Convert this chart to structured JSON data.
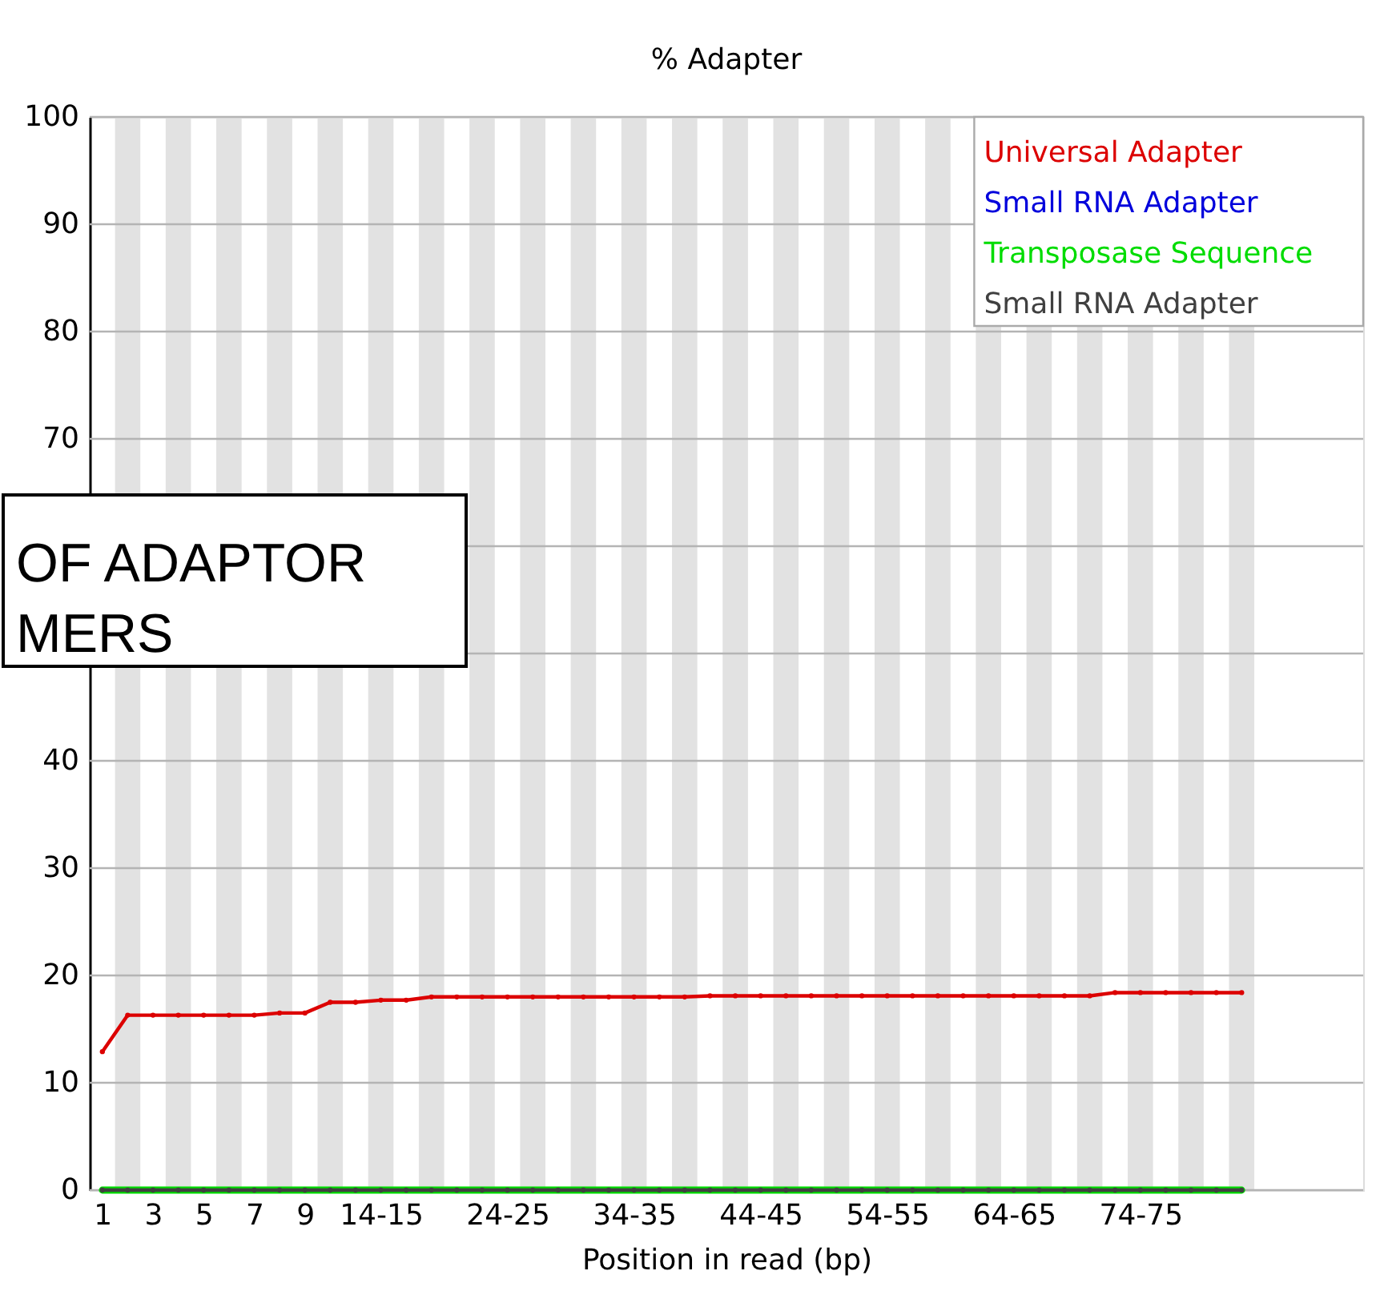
{
  "chart_data": {
    "type": "line",
    "title": "% Adapter",
    "xlabel": "Position in read (bp)",
    "x": [
      1,
      2,
      3,
      4,
      5,
      6,
      7,
      8,
      9,
      10,
      11,
      12,
      13,
      14,
      15,
      16,
      17,
      18,
      19,
      20,
      21,
      22,
      23,
      24,
      25,
      26,
      27,
      28,
      29,
      30,
      31,
      32,
      33,
      34,
      35,
      36,
      37,
      38,
      39,
      40,
      41,
      42,
      43,
      44,
      45,
      46
    ],
    "xlim": [
      0.5,
      50.8
    ],
    "xticks": [
      1,
      3,
      5,
      7,
      9,
      {
        "value": 12,
        "label": "14-15"
      },
      {
        "value": 17,
        "label": "24-25"
      },
      {
        "value": 22,
        "label": "34-35"
      },
      {
        "value": 27,
        "label": "44-45"
      },
      {
        "value": 32,
        "label": "54-55"
      },
      {
        "value": 37,
        "label": "64-65"
      },
      {
        "value": 42,
        "label": "74-75"
      }
    ],
    "ylim": [
      0,
      100
    ],
    "yticks": [
      0,
      10,
      20,
      30,
      40,
      {
        "value": 50,
        "label": null
      },
      {
        "value": 60,
        "label": null
      },
      70,
      80,
      90,
      100
    ],
    "series": [
      {
        "name": "Universal Adapter",
        "color": "#dc0000",
        "values": [
          12.9,
          16.3,
          16.3,
          16.3,
          16.3,
          16.3,
          16.3,
          16.5,
          16.5,
          17.5,
          17.5,
          17.7,
          17.7,
          18.0,
          18.0,
          18.0,
          18.0,
          18.0,
          18.0,
          18.0,
          18.0,
          18.0,
          18.0,
          18.0,
          18.1,
          18.1,
          18.1,
          18.1,
          18.1,
          18.1,
          18.1,
          18.1,
          18.1,
          18.1,
          18.1,
          18.1,
          18.1,
          18.1,
          18.1,
          18.1,
          18.4,
          18.4,
          18.4,
          18.4,
          18.4,
          18.4
        ]
      },
      {
        "name": "Small RNA Adapter",
        "color": "#0000dc",
        "values": [
          null,
          null,
          null,
          null,
          null,
          null,
          null,
          null,
          null,
          null,
          null,
          null,
          null,
          null,
          null,
          null,
          null,
          null,
          null,
          null,
          null,
          null,
          null,
          null,
          null,
          null,
          null,
          null,
          null,
          null,
          null,
          null,
          null,
          null,
          null,
          null,
          null,
          null,
          null,
          null,
          null,
          null,
          null,
          null,
          null,
          null
        ]
      },
      {
        "name": "Transposase Sequence",
        "color": "#00dc00",
        "values": [
          0,
          0,
          0,
          0,
          0,
          0,
          0,
          0,
          0,
          0,
          0,
          0,
          0,
          0,
          0,
          0,
          0,
          0,
          0,
          0,
          0,
          0,
          0,
          0,
          0,
          0,
          0,
          0,
          0,
          0,
          0,
          0,
          0,
          0,
          0,
          0,
          0,
          0,
          0,
          0,
          0,
          0,
          0,
          0,
          0,
          0
        ]
      },
      {
        "name": "Small RNA Adapter",
        "color": "#404040",
        "values": [
          0,
          0,
          0,
          0,
          0,
          0,
          0,
          0,
          0,
          0,
          0,
          0,
          0,
          0,
          0,
          0,
          0,
          0,
          0,
          0,
          0,
          0,
          0,
          0,
          0,
          0,
          0,
          0,
          0,
          0,
          0,
          0,
          0,
          0,
          0,
          0,
          0,
          0,
          0,
          0,
          0,
          0,
          0,
          0,
          0,
          0
        ]
      }
    ],
    "bands": [
      {
        "axis": "x",
        "from": 1.5,
        "to": 2.5,
        "color": "#e2e2e2"
      },
      {
        "axis": "x",
        "from": 3.5,
        "to": 4.5,
        "color": "#e2e2e2"
      },
      {
        "axis": "x",
        "from": 5.5,
        "to": 6.5,
        "color": "#e2e2e2"
      },
      {
        "axis": "x",
        "from": 7.5,
        "to": 8.5,
        "color": "#e2e2e2"
      },
      {
        "axis": "x",
        "from": 9.5,
        "to": 10.5,
        "color": "#e2e2e2"
      },
      {
        "axis": "x",
        "from": 11.5,
        "to": 12.5,
        "color": "#e2e2e2"
      },
      {
        "axis": "x",
        "from": 13.5,
        "to": 14.5,
        "color": "#e2e2e2"
      },
      {
        "axis": "x",
        "from": 15.5,
        "to": 16.5,
        "color": "#e2e2e2"
      },
      {
        "axis": "x",
        "from": 17.5,
        "to": 18.5,
        "color": "#e2e2e2"
      },
      {
        "axis": "x",
        "from": 19.5,
        "to": 20.5,
        "color": "#e2e2e2"
      },
      {
        "axis": "x",
        "from": 21.5,
        "to": 22.5,
        "color": "#e2e2e2"
      },
      {
        "axis": "x",
        "from": 23.5,
        "to": 24.5,
        "color": "#e2e2e2"
      },
      {
        "axis": "x",
        "from": 25.5,
        "to": 26.5,
        "color": "#e2e2e2"
      },
      {
        "axis": "x",
        "from": 27.5,
        "to": 28.5,
        "color": "#e2e2e2"
      },
      {
        "axis": "x",
        "from": 29.5,
        "to": 30.5,
        "color": "#e2e2e2"
      },
      {
        "axis": "x",
        "from": 31.5,
        "to": 32.5,
        "color": "#e2e2e2"
      },
      {
        "axis": "x",
        "from": 33.5,
        "to": 34.5,
        "color": "#e2e2e2"
      },
      {
        "axis": "x",
        "from": 35.5,
        "to": 36.5,
        "color": "#e2e2e2"
      },
      {
        "axis": "x",
        "from": 37.5,
        "to": 38.5,
        "color": "#e2e2e2"
      },
      {
        "axis": "x",
        "from": 39.5,
        "to": 40.5,
        "color": "#e2e2e2"
      },
      {
        "axis": "x",
        "from": 41.5,
        "to": 42.5,
        "color": "#e2e2e2"
      },
      {
        "axis": "x",
        "from": 43.5,
        "to": 44.5,
        "color": "#e2e2e2"
      },
      {
        "axis": "x",
        "from": 45.5,
        "to": 46.5,
        "color": "#e2e2e2"
      }
    ],
    "annotations": [
      "OF ADAPTOR",
      "MERS"
    ],
    "grid": "y",
    "legend": "top right",
    "marker": "circle",
    "line_style": "solid"
  }
}
